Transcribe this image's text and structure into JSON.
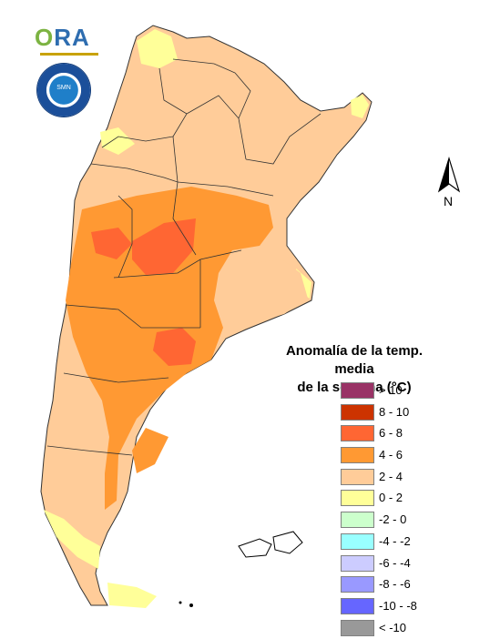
{
  "header": {
    "org_logo_text_prefix": "",
    "org_logo_text_o": "O",
    "org_logo_text_rest": "RA",
    "agency_seal_text": "SMN"
  },
  "compass": {
    "north_label": "N"
  },
  "legend": {
    "title_line1": "Anomalía de la temp. media",
    "title_line2": "de la semana (°C)",
    "items": [
      {
        "label": "> 10",
        "color": "#993366"
      },
      {
        "label": "8 - 10",
        "color": "#cc3300"
      },
      {
        "label": "6 - 8",
        "color": "#ff6633"
      },
      {
        "label": "4 - 6",
        "color": "#ff9933"
      },
      {
        "label": "2 - 4",
        "color": "#ffcc99"
      },
      {
        "label": "0 - 2",
        "color": "#ffff99"
      },
      {
        "label": "-2 - 0",
        "color": "#ccffcc"
      },
      {
        "label": "-4 - -2",
        "color": "#99ffff"
      },
      {
        "label": "-6 - -4",
        "color": "#ccccff"
      },
      {
        "label": "-8 - -6",
        "color": "#9999ff"
      },
      {
        "label": "-10 - -8",
        "color": "#6666ff"
      },
      {
        "label": "< -10",
        "color": "#999999"
      }
    ]
  }
}
